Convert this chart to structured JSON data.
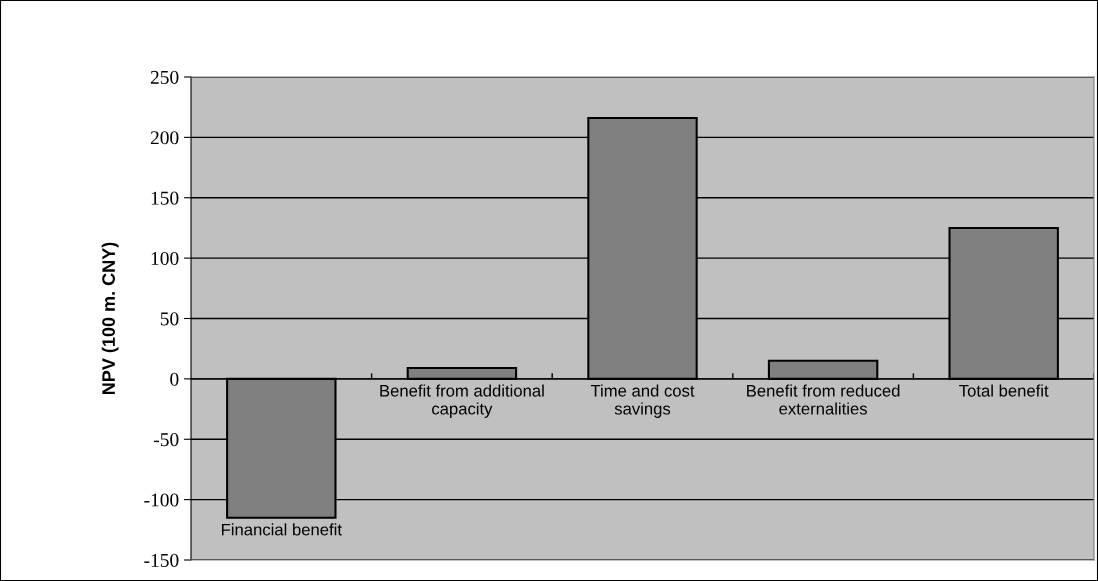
{
  "chart_data": {
    "type": "bar",
    "ylabel": "NPV (100 m. CNY)",
    "categories": [
      "Financial benefit",
      "Benefit from additional\ncapacity",
      "Time and cost\nsavings",
      "Benefit from reduced\nexternalities",
      "Total benefit"
    ],
    "values": [
      -115,
      9,
      216,
      15,
      125
    ],
    "color": "#808080",
    "ylim": [
      -150,
      250
    ],
    "yticks": [
      -150,
      -100,
      -50,
      0,
      50,
      100,
      150,
      200,
      250
    ],
    "grid": "y"
  }
}
